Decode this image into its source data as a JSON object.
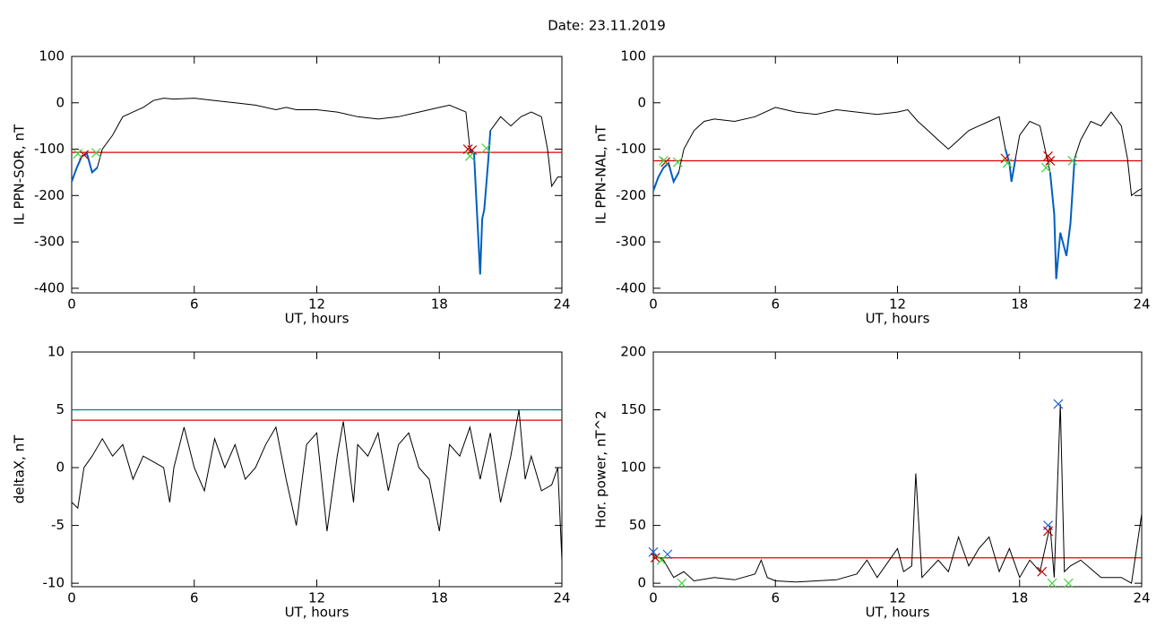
{
  "title": "Date:  23.11.2019",
  "chart_data": [
    {
      "type": "line",
      "ylabel": "IL PPN-SOR, nT",
      "xlabel": "UT, hours",
      "xlim": [
        0,
        24
      ],
      "xticks": [
        0,
        6,
        12,
        18,
        24
      ],
      "ylim": [
        -410,
        100
      ],
      "yticks": [
        -400,
        -300,
        -200,
        -100,
        0,
        100
      ],
      "color": "#000000",
      "x": [
        0,
        0.25,
        0.5,
        0.75,
        1,
        1.25,
        1.5,
        2,
        2.5,
        3,
        3.5,
        4,
        4.5,
        5,
        6,
        7,
        8,
        9,
        10,
        10.5,
        11,
        12,
        13,
        14,
        15,
        16,
        17,
        18,
        18.5,
        19.3,
        19.5,
        19.7,
        19.8,
        20,
        20.1,
        20.2,
        20.4,
        20.5,
        21,
        21.5,
        22,
        22.5,
        23,
        23.3,
        23.5,
        23.8,
        24
      ],
      "values": [
        -170,
        -140,
        -115,
        -110,
        -150,
        -140,
        -100,
        -70,
        -30,
        -20,
        -10,
        5,
        10,
        8,
        10,
        5,
        0,
        -5,
        -15,
        -10,
        -15,
        -15,
        -20,
        -30,
        -35,
        -30,
        -20,
        -10,
        -5,
        -20,
        -100,
        -110,
        -200,
        -370,
        -250,
        -230,
        -120,
        -60,
        -30,
        -50,
        -30,
        -20,
        -30,
        -100,
        -180,
        -160,
        -160
      ],
      "highlight_color": "#0060c0",
      "highlight_ranges": [
        [
          0,
          1.3
        ],
        [
          19.4,
          20.5
        ]
      ],
      "hlines": [
        {
          "value": -107,
          "color": "#e00000"
        }
      ],
      "markers": [
        {
          "x": 0.6,
          "y": -112,
          "color": "#c00000"
        },
        {
          "x": 19.4,
          "y": -100,
          "color": "#c00000"
        },
        {
          "x": 19.6,
          "y": -102,
          "color": "#c00000"
        },
        {
          "x": 0.3,
          "y": -110,
          "color": "#40d040"
        },
        {
          "x": 1.2,
          "y": -108,
          "color": "#40d040"
        },
        {
          "x": 19.5,
          "y": -115,
          "color": "#40d040"
        },
        {
          "x": 20.3,
          "y": -98,
          "color": "#40d040"
        }
      ]
    },
    {
      "type": "line",
      "ylabel": "IL PPN-NAL, nT",
      "xlabel": "UT, hours",
      "xlim": [
        0,
        24
      ],
      "xticks": [
        0,
        6,
        12,
        18,
        24
      ],
      "ylim": [
        -410,
        100
      ],
      "yticks": [
        -400,
        -300,
        -200,
        -100,
        0,
        100
      ],
      "color": "#000000",
      "x": [
        0,
        0.25,
        0.5,
        0.75,
        1,
        1.25,
        1.5,
        2,
        2.5,
        3,
        4,
        5,
        6,
        7,
        8,
        9,
        10,
        11,
        12,
        12.5,
        13,
        13.5,
        14,
        14.5,
        15,
        15.5,
        16,
        16.5,
        17,
        17.3,
        17.5,
        17.6,
        17.8,
        18,
        18.5,
        19,
        19.3,
        19.5,
        19.7,
        19.8,
        20,
        20.3,
        20.5,
        20.7,
        21,
        21.5,
        22,
        22.5,
        23,
        23.3,
        23.5,
        23.8,
        24
      ],
      "values": [
        -190,
        -160,
        -140,
        -130,
        -170,
        -150,
        -100,
        -60,
        -40,
        -35,
        -40,
        -30,
        -10,
        -20,
        -25,
        -15,
        -20,
        -25,
        -20,
        -15,
        -40,
        -60,
        -80,
        -100,
        -80,
        -60,
        -50,
        -40,
        -30,
        -100,
        -130,
        -170,
        -120,
        -70,
        -40,
        -50,
        -110,
        -150,
        -240,
        -380,
        -280,
        -330,
        -260,
        -120,
        -80,
        -40,
        -50,
        -20,
        -50,
        -120,
        -200,
        -190,
        -185
      ],
      "highlight_color": "#0060c0",
      "highlight_ranges": [
        [
          0,
          1.3
        ],
        [
          17.3,
          17.8
        ],
        [
          19.4,
          20.8
        ]
      ],
      "hlines": [
        {
          "value": -125,
          "color": "#e00000"
        }
      ],
      "markers": [
        {
          "x": 0.6,
          "y": -128,
          "color": "#c00000"
        },
        {
          "x": 17.3,
          "y": -120,
          "color": "#c00000"
        },
        {
          "x": 19.4,
          "y": -115,
          "color": "#c00000"
        },
        {
          "x": 19.5,
          "y": -125,
          "color": "#c00000"
        },
        {
          "x": 0.5,
          "y": -125,
          "color": "#40d040"
        },
        {
          "x": 1.2,
          "y": -128,
          "color": "#40d040"
        },
        {
          "x": 17.4,
          "y": -130,
          "color": "#40d040"
        },
        {
          "x": 19.3,
          "y": -140,
          "color": "#40d040"
        },
        {
          "x": 20.6,
          "y": -125,
          "color": "#40d040"
        }
      ]
    },
    {
      "type": "line",
      "ylabel": "deltaX, nT",
      "xlabel": "UT, hours",
      "xlim": [
        0,
        24
      ],
      "xticks": [
        0,
        6,
        12,
        18,
        24
      ],
      "ylim": [
        -10.3,
        10
      ],
      "yticks": [
        -10,
        -5,
        0,
        5,
        10
      ],
      "color": "#000000",
      "x": [
        0,
        0.3,
        0.6,
        1,
        1.5,
        2,
        2.5,
        3,
        3.5,
        4,
        4.5,
        4.8,
        5,
        5.5,
        6,
        6.5,
        7,
        7.5,
        8,
        8.5,
        9,
        9.5,
        10,
        10.5,
        11,
        11.5,
        12,
        12.5,
        13,
        13.3,
        13.8,
        14,
        14.5,
        15,
        15.5,
        16,
        16.5,
        17,
        17.5,
        18,
        18.5,
        19,
        19.5,
        20,
        20.5,
        21,
        21.5,
        21.9,
        22.2,
        22.5,
        23,
        23.5,
        23.8,
        24
      ],
      "values": [
        -3,
        -3.5,
        0,
        1,
        2.5,
        1,
        2,
        -1,
        1,
        0.5,
        0,
        -3,
        0,
        3.5,
        0,
        -2,
        2.5,
        0,
        2,
        -1,
        0,
        2,
        3.5,
        -1,
        -5,
        2,
        3,
        -5.5,
        1,
        4,
        -3,
        2,
        1,
        3,
        -2,
        2,
        3,
        0,
        -1,
        -5.5,
        2,
        1,
        3.5,
        -1,
        3,
        -3,
        1,
        5,
        -1,
        1,
        -2,
        -1.5,
        0,
        -8
      ],
      "hlines": [
        {
          "value": 5,
          "color": "#008080"
        },
        {
          "value": 4.1,
          "color": "#e00000"
        }
      ],
      "markers": []
    },
    {
      "type": "line",
      "ylabel": "Hor. power, nT^2",
      "xlabel": "UT, hours",
      "xlim": [
        0,
        24
      ],
      "xticks": [
        0,
        6,
        12,
        18,
        24
      ],
      "ylim": [
        -3,
        200
      ],
      "yticks": [
        0,
        50,
        100,
        150,
        200
      ],
      "color": "#000000",
      "x": [
        0,
        0.5,
        1,
        1.5,
        2,
        3,
        4,
        5,
        5.3,
        5.6,
        6,
        7,
        8,
        9,
        10,
        10.5,
        11,
        12,
        12.3,
        12.7,
        12.9,
        13.2,
        14,
        14.5,
        15,
        15.5,
        16,
        16.5,
        17,
        17.5,
        18,
        18.5,
        19,
        19.5,
        19.7,
        20,
        20.2,
        20.5,
        21,
        22,
        23,
        23.5,
        24
      ],
      "values": [
        25,
        20,
        5,
        10,
        2,
        5,
        3,
        8,
        20,
        5,
        2,
        1,
        2,
        3,
        8,
        20,
        5,
        30,
        10,
        15,
        95,
        5,
        20,
        10,
        40,
        15,
        30,
        40,
        10,
        30,
        5,
        20,
        10,
        50,
        5,
        155,
        10,
        15,
        20,
        5,
        5,
        0,
        60
      ],
      "hlines": [
        {
          "value": 22,
          "color": "#e00000"
        }
      ],
      "markers": [
        {
          "x": 0,
          "y": 27,
          "color": "#2060d0"
        },
        {
          "x": 0.7,
          "y": 25,
          "color": "#2060d0"
        },
        {
          "x": 19.4,
          "y": 50,
          "color": "#2060d0"
        },
        {
          "x": 19.9,
          "y": 155,
          "color": "#2060d0"
        },
        {
          "x": 0.1,
          "y": 22,
          "color": "#c00000"
        },
        {
          "x": 19.4,
          "y": 45,
          "color": "#c00000"
        },
        {
          "x": 19.1,
          "y": 10,
          "color": "#c00000"
        },
        {
          "x": 0.4,
          "y": 20,
          "color": "#40d040"
        },
        {
          "x": 1.4,
          "y": 0,
          "color": "#40d040"
        },
        {
          "x": 19.6,
          "y": 0,
          "color": "#40d040"
        },
        {
          "x": 20.4,
          "y": 0,
          "color": "#40d040"
        }
      ]
    }
  ]
}
